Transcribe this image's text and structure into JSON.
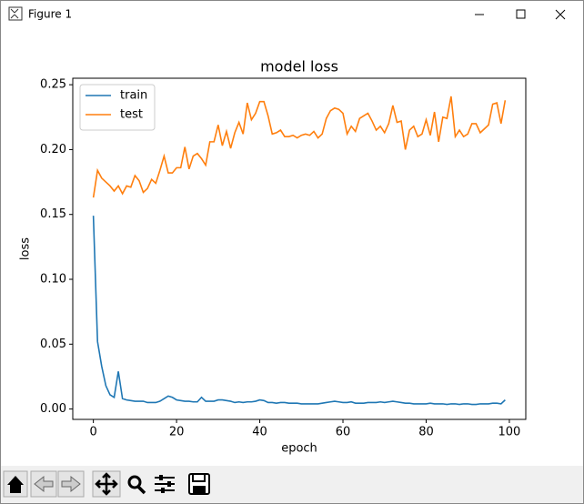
{
  "window": {
    "title": "Figure 1"
  },
  "chart_data": {
    "type": "line",
    "title": "model loss",
    "x_label": "epoch",
    "y_label": "loss",
    "x": [
      0,
      1,
      2,
      3,
      4,
      5,
      6,
      7,
      8,
      9,
      10,
      11,
      12,
      13,
      14,
      15,
      16,
      17,
      18,
      19,
      20,
      21,
      22,
      23,
      24,
      25,
      26,
      27,
      28,
      29,
      30,
      31,
      32,
      33,
      34,
      35,
      36,
      37,
      38,
      39,
      40,
      41,
      42,
      43,
      44,
      45,
      46,
      47,
      48,
      49,
      50,
      51,
      52,
      53,
      54,
      55,
      56,
      57,
      58,
      59,
      60,
      61,
      62,
      63,
      64,
      65,
      66,
      67,
      68,
      69,
      70,
      71,
      72,
      73,
      74,
      75,
      76,
      77,
      78,
      79,
      80,
      81,
      82,
      83,
      84,
      85,
      86,
      87,
      88,
      89,
      90,
      91,
      92,
      93,
      94,
      95,
      96,
      97,
      98,
      99
    ],
    "series": [
      {
        "name": "train",
        "color": "#1f77b4",
        "values": [
          0.149,
          0.052,
          0.033,
          0.018,
          0.011,
          0.009,
          0.029,
          0.008,
          0.007,
          0.0065,
          0.006,
          0.006,
          0.006,
          0.005,
          0.005,
          0.005,
          0.006,
          0.008,
          0.01,
          0.009,
          0.007,
          0.0065,
          0.006,
          0.006,
          0.0055,
          0.0055,
          0.009,
          0.006,
          0.006,
          0.006,
          0.007,
          0.007,
          0.0065,
          0.006,
          0.005,
          0.0055,
          0.005,
          0.0055,
          0.0055,
          0.006,
          0.007,
          0.0065,
          0.005,
          0.005,
          0.0045,
          0.005,
          0.005,
          0.0045,
          0.0045,
          0.0045,
          0.004,
          0.004,
          0.004,
          0.004,
          0.004,
          0.0045,
          0.005,
          0.0055,
          0.006,
          0.0055,
          0.005,
          0.005,
          0.0055,
          0.0045,
          0.0045,
          0.0045,
          0.005,
          0.005,
          0.005,
          0.0055,
          0.005,
          0.0055,
          0.006,
          0.0055,
          0.005,
          0.0045,
          0.0045,
          0.004,
          0.004,
          0.004,
          0.004,
          0.0045,
          0.004,
          0.004,
          0.004,
          0.0035,
          0.004,
          0.004,
          0.0035,
          0.004,
          0.004,
          0.0035,
          0.0035,
          0.004,
          0.004,
          0.004,
          0.0045,
          0.0045,
          0.004,
          0.007
        ]
      },
      {
        "name": "test",
        "color": "#ff7f0e",
        "values": [
          0.163,
          0.184,
          0.178,
          0.175,
          0.172,
          0.168,
          0.172,
          0.166,
          0.172,
          0.171,
          0.18,
          0.176,
          0.167,
          0.17,
          0.177,
          0.174,
          0.184,
          0.195,
          0.182,
          0.182,
          0.186,
          0.186,
          0.202,
          0.185,
          0.195,
          0.197,
          0.193,
          0.188,
          0.206,
          0.206,
          0.219,
          0.203,
          0.214,
          0.201,
          0.213,
          0.221,
          0.212,
          0.236,
          0.223,
          0.228,
          0.237,
          0.237,
          0.226,
          0.212,
          0.213,
          0.215,
          0.21,
          0.21,
          0.211,
          0.209,
          0.211,
          0.212,
          0.211,
          0.214,
          0.209,
          0.212,
          0.224,
          0.23,
          0.232,
          0.231,
          0.228,
          0.212,
          0.218,
          0.214,
          0.224,
          0.226,
          0.228,
          0.222,
          0.215,
          0.218,
          0.213,
          0.22,
          0.234,
          0.221,
          0.222,
          0.2,
          0.215,
          0.218,
          0.21,
          0.212,
          0.223,
          0.211,
          0.229,
          0.206,
          0.225,
          0.224,
          0.241,
          0.21,
          0.215,
          0.21,
          0.212,
          0.22,
          0.22,
          0.213,
          0.216,
          0.219,
          0.235,
          0.236,
          0.22,
          0.238
        ]
      }
    ],
    "xlim": [
      -4.95,
      103.95
    ],
    "xticks": [
      0,
      20,
      40,
      60,
      80,
      100
    ],
    "ylim": [
      -0.008,
      0.255
    ],
    "yticks": [
      {
        "value": 0,
        "label": "0.00"
      },
      0.05,
      {
        "value": 0.1,
        "label": "0.10"
      },
      0.15,
      {
        "value": 0.2,
        "label": "0.20"
      },
      0.25
    ],
    "legend": "upper left",
    "grid": false
  }
}
